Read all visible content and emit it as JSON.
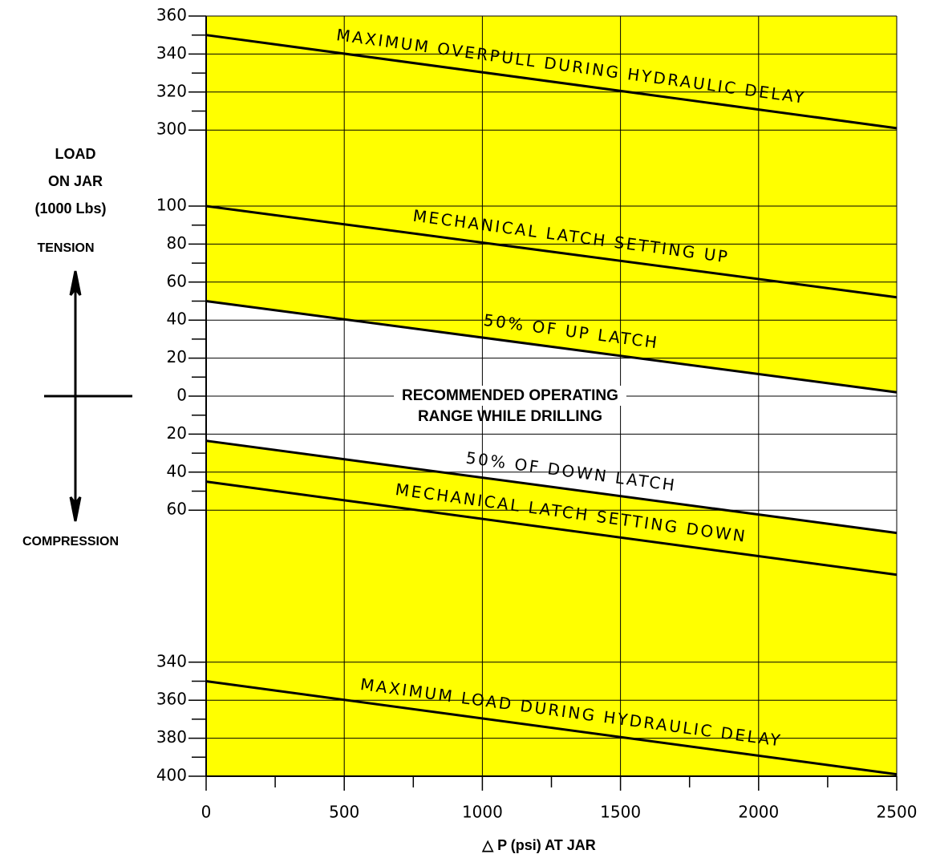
{
  "chart_data": {
    "type": "line",
    "y_label": [
      "LOAD",
      "ON JAR",
      "(1000 Lbs)"
    ],
    "tension_label": "TENSION",
    "compression_label": "COMPRESSION",
    "x_label": "△ P (psi) AT JAR",
    "annotation": [
      "RECOMMENDED OPERATING",
      "RANGE WHILE DRILLING"
    ],
    "x": [
      0,
      2500
    ],
    "xlim": [
      0,
      2500
    ],
    "xticks": [
      0,
      500,
      1000,
      1500,
      2000,
      2500
    ],
    "xminorticks": [
      250,
      750,
      1250,
      1750,
      2250
    ],
    "y_segments": [
      {
        "ylim": [
          300,
          360
        ],
        "yticks": [
          300,
          320,
          340,
          360
        ],
        "yminorticks": [
          310,
          330,
          350
        ]
      },
      {
        "ylim": [
          -100,
          100
        ],
        "yticks": [
          {
            "value": -60,
            "label": "60"
          },
          {
            "value": -40,
            "label": "40"
          },
          {
            "value": -20,
            "label": "20"
          },
          0,
          20,
          40,
          60,
          80,
          100
        ],
        "yminorticks": [
          -50,
          -30,
          -10,
          10,
          30,
          50,
          70,
          90
        ]
      },
      {
        "ylim": [
          -400,
          -340
        ],
        "yticks": [
          {
            "value": -400,
            "label": "400"
          },
          {
            "value": -380,
            "label": "380"
          },
          {
            "value": -360,
            "label": "360"
          },
          {
            "value": -340,
            "label": "340"
          }
        ],
        "yminorticks": [
          -390,
          -370,
          -350
        ]
      }
    ],
    "grid": true,
    "fill_color": "#ffff00",
    "series": [
      {
        "name": "MAXIMUM OVERPULL DURING HYDRAULIC DELAY",
        "color": "#000000",
        "values": [
          350,
          301
        ]
      },
      {
        "name": "MECHANICAL LATCH SETTING UP",
        "color": "#000000",
        "values": [
          100,
          52
        ]
      },
      {
        "name": "50% OF UP LATCH",
        "color": "#000000",
        "values": [
          50,
          2
        ]
      },
      {
        "name": "50% OF DOWN LATCH",
        "color": "#000000",
        "values": [
          -23.5,
          -72
        ]
      },
      {
        "name": "MECHANICAL LATCH SETTING DOWN",
        "color": "#000000",
        "values": [
          -45,
          -94
        ]
      },
      {
        "name": "MAXIMUM LOAD DURING HYDRAULIC DELAY",
        "color": "#000000",
        "values": [
          -350,
          -399
        ]
      }
    ]
  }
}
